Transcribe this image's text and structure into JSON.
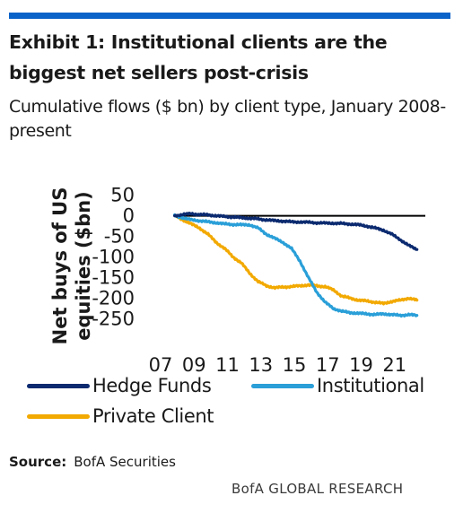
{
  "header": {
    "title": "Exhibit 1: Institutional clients are the biggest net sellers post-crisis",
    "subtitle": "Cumulative flows ($ bn) by client type, January 2008-present"
  },
  "source": {
    "label": "Source:",
    "text": "BofA Securities"
  },
  "footer": {
    "brand": "BofA GLOBAL RESEARCH"
  },
  "colors": {
    "accent": "#0a63c9",
    "hedge_funds": "#0b2a6f",
    "institutional": "#2a9fd8",
    "private_client": "#f2a900",
    "zero_line": "#000000"
  },
  "chart_data": {
    "type": "line",
    "title": "",
    "xlabel": "",
    "ylabel": "Net buys of US equities ($bn)",
    "xlim": [
      2007,
      2023
    ],
    "ylim": [
      -260,
      60
    ],
    "x_ticks": [
      "07",
      "09",
      "11",
      "13",
      "15",
      "17",
      "19",
      "21"
    ],
    "y_ticks": [
      50,
      0,
      -50,
      -100,
      -150,
      -200,
      -250
    ],
    "legend": "bottom",
    "grid": false,
    "x": [
      2008.0,
      2008.5,
      2009.0,
      2009.5,
      2010.0,
      2010.5,
      2011.0,
      2011.5,
      2012.0,
      2012.5,
      2013.0,
      2013.5,
      2014.0,
      2014.5,
      2015.0,
      2015.5,
      2016.0,
      2016.5,
      2017.0,
      2017.5,
      2018.0,
      2018.5,
      2019.0,
      2019.5,
      2020.0,
      2020.5,
      2021.0,
      2021.5,
      2022.0,
      2022.5
    ],
    "series": [
      {
        "name": "Hedge Funds",
        "values": [
          0,
          3,
          5,
          3,
          2,
          0,
          -2,
          -3,
          -5,
          -6,
          -8,
          -10,
          -12,
          -13,
          -15,
          -15,
          -16,
          -17,
          -18,
          -18,
          -19,
          -20,
          -22,
          -25,
          -30,
          -35,
          -45,
          -58,
          -72,
          -82
        ]
      },
      {
        "name": "Institutional",
        "values": [
          0,
          -5,
          -10,
          -12,
          -15,
          -17,
          -20,
          -21,
          -22,
          -22,
          -30,
          -45,
          -55,
          -65,
          -80,
          -110,
          -150,
          -185,
          -210,
          -225,
          -232,
          -235,
          -237,
          -238,
          -240,
          -238,
          -240,
          -242,
          -240,
          -242
        ]
      },
      {
        "name": "Private Client",
        "values": [
          0,
          -10,
          -20,
          -30,
          -45,
          -65,
          -80,
          -100,
          -115,
          -140,
          -160,
          -170,
          -175,
          -173,
          -172,
          -170,
          -168,
          -170,
          -172,
          -180,
          -195,
          -200,
          -205,
          -207,
          -210,
          -213,
          -208,
          -205,
          -200,
          -205
        ]
      }
    ]
  }
}
